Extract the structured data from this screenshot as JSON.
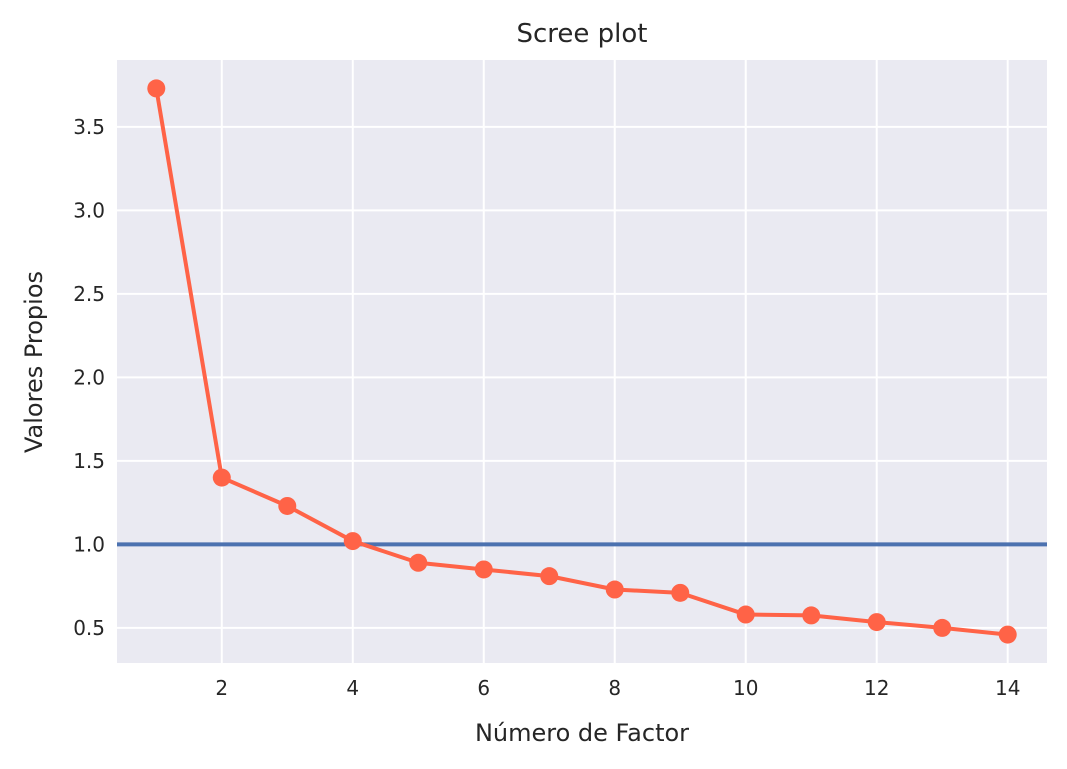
{
  "chart_data": {
    "type": "line",
    "title": "Scree plot",
    "xlabel": "Número de Factor",
    "ylabel": "Valores Propios",
    "xlim": [
      0.4,
      14.6
    ],
    "ylim": [
      0.29,
      3.9
    ],
    "xticks": [
      2,
      4,
      6,
      8,
      10,
      12,
      14
    ],
    "yticks": [
      0.5,
      1.0,
      1.5,
      2.0,
      2.5,
      3.0,
      3.5
    ],
    "xtick_labels": [
      "2",
      "4",
      "6",
      "8",
      "10",
      "12",
      "14"
    ],
    "ytick_labels": [
      "0.5",
      "1.0",
      "1.5",
      "2.0",
      "2.5",
      "3.0",
      "3.5"
    ],
    "grid": true,
    "series": [
      {
        "x": [
          1,
          2,
          3,
          4,
          5,
          6,
          7,
          8,
          9,
          10,
          11,
          12,
          13,
          14
        ],
        "values": [
          3.73,
          1.4,
          1.23,
          1.02,
          0.89,
          0.85,
          0.81,
          0.73,
          0.71,
          0.58,
          0.575,
          0.535,
          0.5,
          0.46
        ],
        "color": "#ff6347"
      }
    ],
    "reference_line": {
      "y": 1.0,
      "color": "#4c72b0"
    },
    "background_color": "#eaeaf2",
    "grid_color": "#ffffff"
  }
}
